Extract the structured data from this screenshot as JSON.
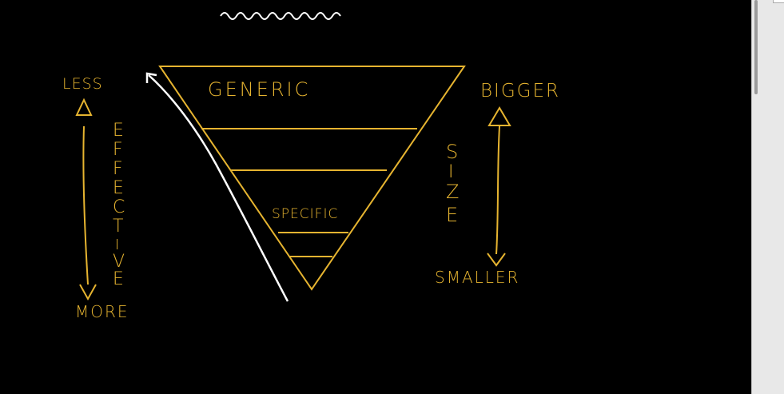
{
  "colors": {
    "background": "#000000",
    "ink_gold": "#E6B430",
    "ink_white": "#FFFFFF",
    "scrollbar": "#E8E8E8"
  },
  "diagram": {
    "top_label": "GENERIC",
    "middle_label": "SPECIFIC",
    "left_axis": {
      "top_label": "LESS",
      "bottom_label": "MORE",
      "word": "EFFECTIVE",
      "letters": [
        "E",
        "F",
        "F",
        "E",
        "C",
        "T",
        "I",
        "V",
        "E"
      ]
    },
    "right_axis": {
      "top_label": "BIGGER",
      "bottom_label": "SMALLER",
      "word": "SIZE",
      "letters": [
        "S",
        "I",
        "Z",
        "E"
      ]
    }
  }
}
